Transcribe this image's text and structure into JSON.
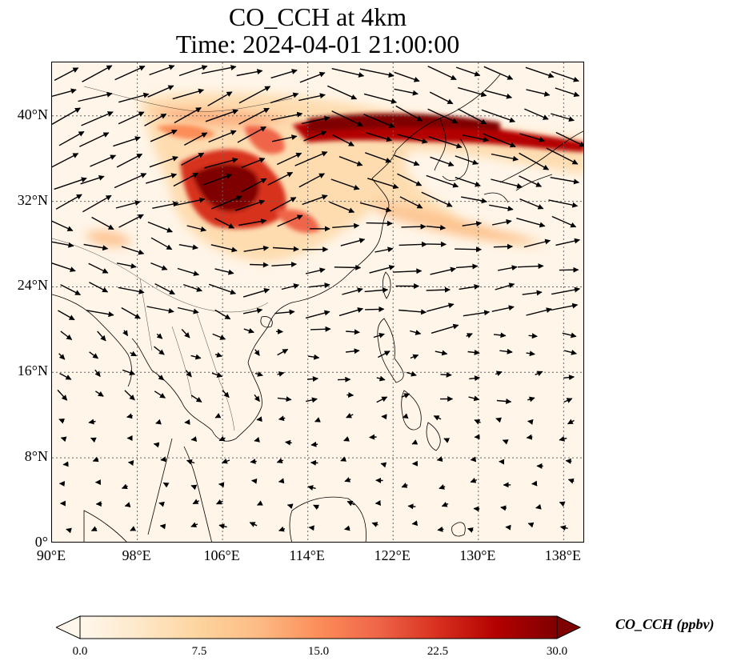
{
  "title": {
    "line1": "CO_CCH at 4km",
    "line2": "Time: 2024-04-01 21:00:00"
  },
  "map": {
    "lon_range": [
      90,
      140
    ],
    "lat_range": [
      0,
      45
    ],
    "y_ticks": [
      {
        "lat": 0,
        "label": "0°"
      },
      {
        "lat": 8,
        "label": "8°N"
      },
      {
        "lat": 16,
        "label": "16°N"
      },
      {
        "lat": 24,
        "label": "24°N"
      },
      {
        "lat": 32,
        "label": "32°N"
      },
      {
        "lat": 40,
        "label": "40°N"
      }
    ],
    "x_ticks": [
      {
        "lon": 90,
        "label": "90°E"
      },
      {
        "lon": 98,
        "label": "98°E"
      },
      {
        "lon": 106,
        "label": "106°E"
      },
      {
        "lon": 114,
        "label": "114°E"
      },
      {
        "lon": 122,
        "label": "122°E"
      },
      {
        "lon": 130,
        "label": "130°E"
      },
      {
        "lon": 138,
        "label": "138°E"
      }
    ],
    "gridlines": "dotted",
    "colors": {
      "ocean_background": "#fff5e8",
      "coastline": "#000000",
      "arrows": "#000000"
    }
  },
  "colorbar": {
    "label": "CO_CCH (ppbv)",
    "min": 0.0,
    "max": 30.0,
    "ticks": [
      "0.0",
      "7.5",
      "15.0",
      "22.5",
      "30.0"
    ],
    "extend": "both",
    "colormap": "OrRd",
    "colors": [
      "#fff7ec",
      "#fee8c8",
      "#fdd49e",
      "#fdbb84",
      "#fc8d59",
      "#ef6548",
      "#d7301f",
      "#b30000",
      "#7f0000"
    ]
  }
}
